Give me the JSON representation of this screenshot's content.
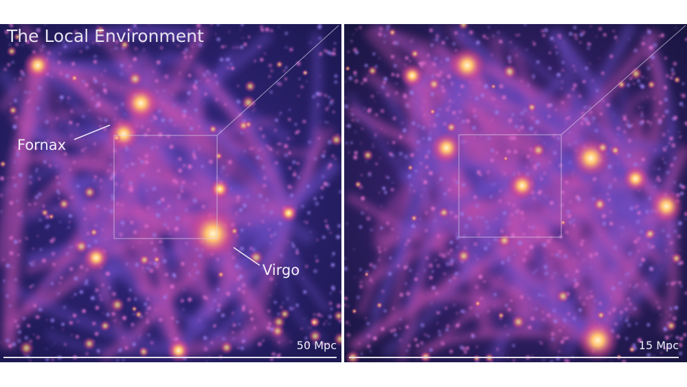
{
  "title": "The Local Environment",
  "annotations": {
    "fornax": "Fornax",
    "virgo": "Virgo"
  },
  "scale_bars": [
    "50 Mpc",
    "15 Mpc"
  ]
}
